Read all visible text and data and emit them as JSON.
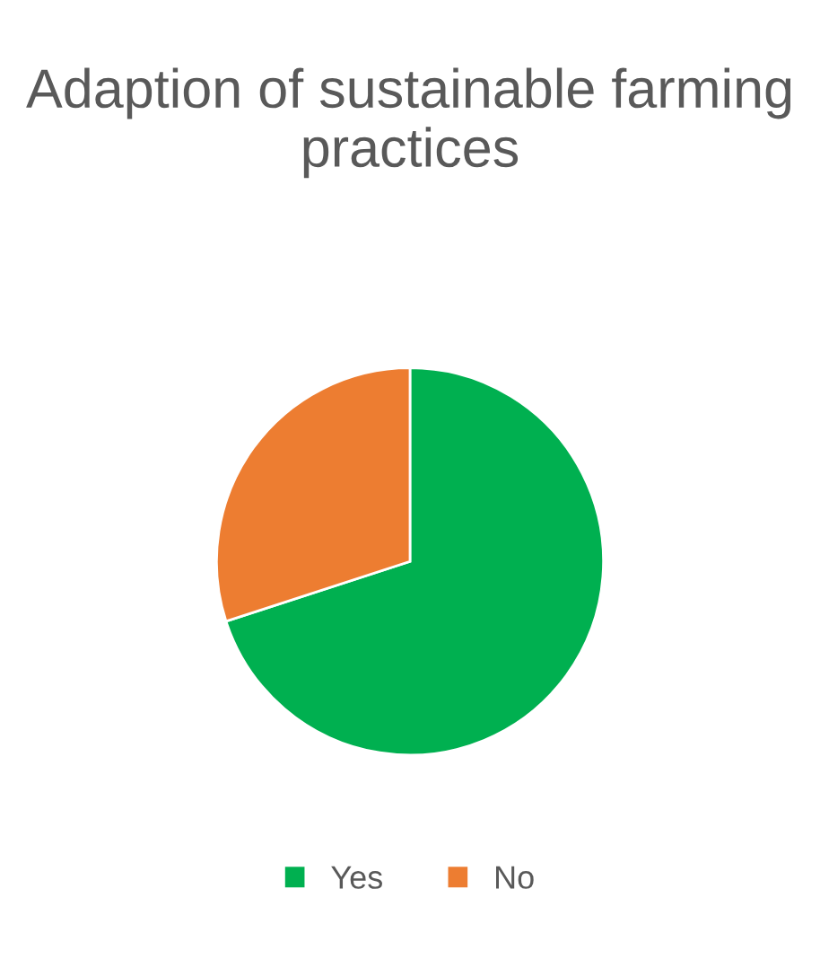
{
  "chart_data": {
    "type": "pie",
    "title": "Adaption of sustainable farming practices",
    "categories": [
      "Yes",
      "No"
    ],
    "values": [
      70,
      30
    ],
    "colors": [
      "#00b050",
      "#ed7d31"
    ],
    "legend": "bottom"
  }
}
